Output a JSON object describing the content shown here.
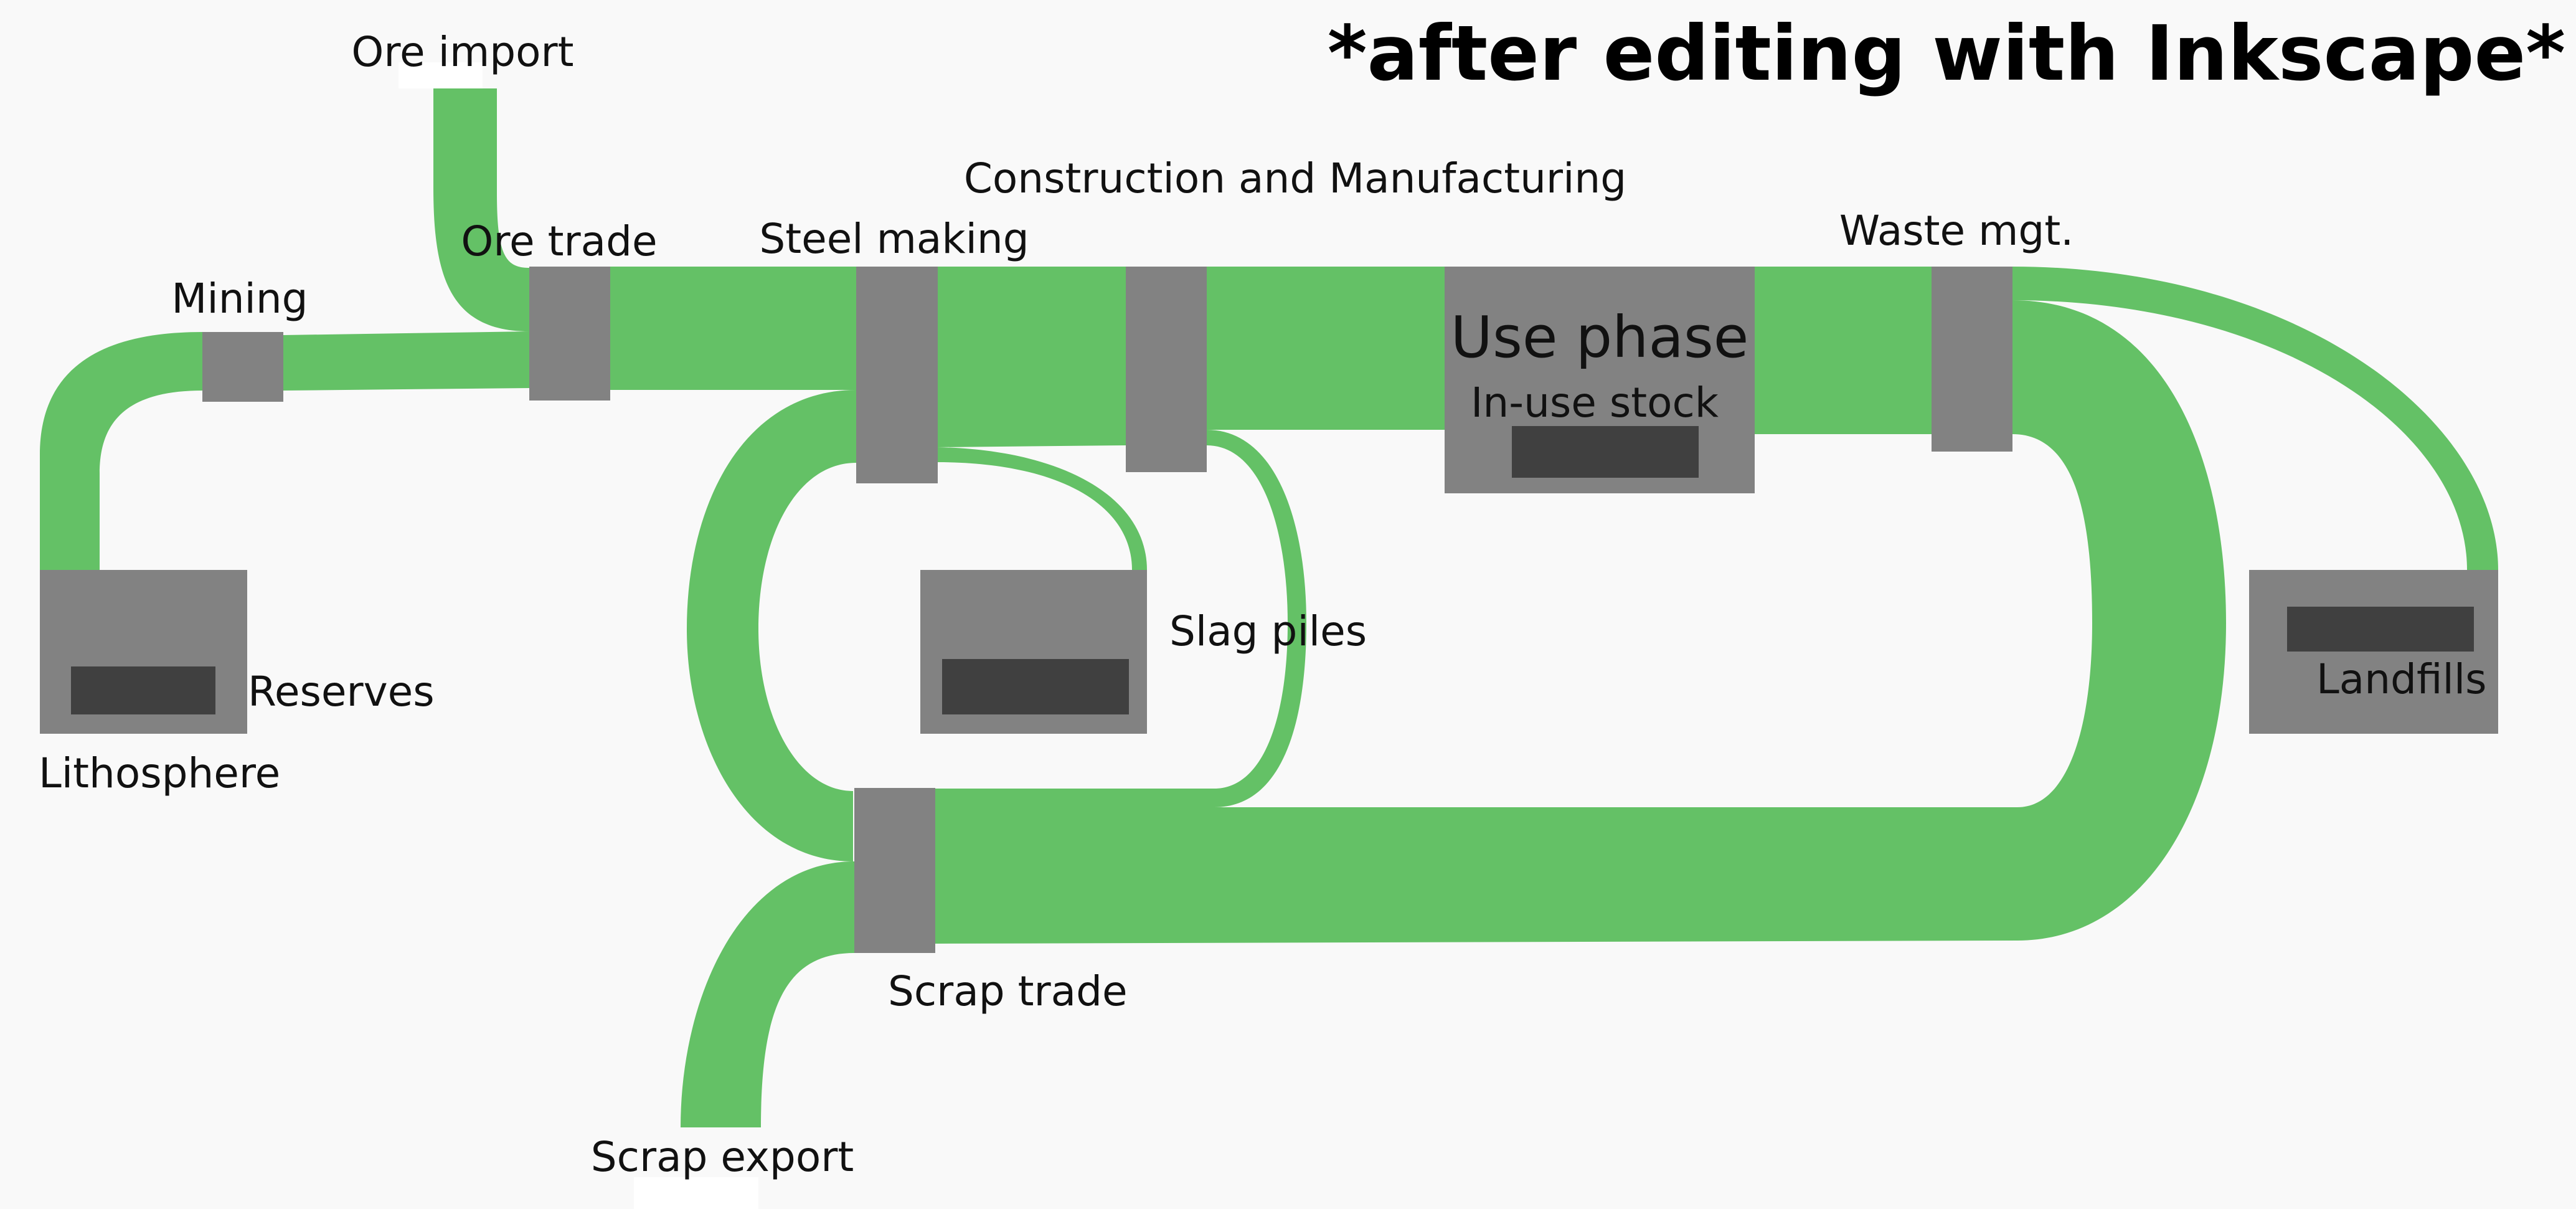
{
  "title": "*after editing with Inkscape*",
  "colors": {
    "flow": "#64c166",
    "process": "#828282",
    "stock": "#404040",
    "background": "#f9f9f9"
  },
  "labels": {
    "ore_import": "Ore import",
    "mining": "Mining",
    "ore_trade": "Ore trade",
    "steel_making": "Steel making",
    "construction": "Construction and Manufacturing",
    "use_phase": "Use phase",
    "in_use_stock": "In-use stock",
    "waste_mgt": "Waste mgt.",
    "slag_piles": "Slag piles",
    "reserves": "Reserves",
    "lithosphere": "Lithosphere",
    "landfills": "Landfills",
    "scrap_trade": "Scrap trade",
    "scrap_export": "Scrap export"
  }
}
